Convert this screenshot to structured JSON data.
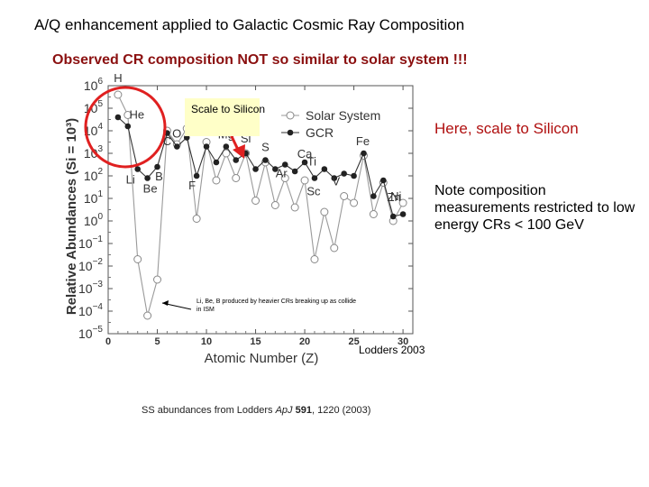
{
  "slide": {
    "title": "A/Q enhancement applied to Galactic Cosmic Ray Composition",
    "subtitle": "Observed CR composition NOT so similar to solar system !!!",
    "note_scale": "Here, scale to Silicon",
    "note_restrict": "Note composition measurements restricted to low energy CRs < 100 GeV",
    "credit": "Lodders 2003",
    "source_prefix": "SS abundances from Lodders ",
    "source_journal": "ApJ",
    "source_volume": "591",
    "source_suffix": ", 1220 (2003)",
    "colors": {
      "subtitle": "#8b1010",
      "note_scale": "#b01010",
      "highlight_circle": "#e02020",
      "arrow": "#e02020",
      "callout_bg": "#ffffc8"
    }
  },
  "chart_data": {
    "type": "line",
    "ylabel": "Relative Abundances (Si = 10³)",
    "xlabel": "Atomic Number (Z)",
    "xlim": [
      0,
      31
    ],
    "ylim": [
      -5,
      6
    ],
    "yscale": "log",
    "x_ticks": [
      "0",
      "5",
      "10",
      "15",
      "20",
      "25",
      "30"
    ],
    "y_ticks": [
      "10⁶",
      "10⁵",
      "10⁴",
      "10³",
      "10²",
      "10¹",
      "10⁰",
      "10⁻¹",
      "10⁻²",
      "10⁻³",
      "10⁻⁴",
      "10⁻⁵"
    ],
    "y_tick_exponents": [
      6,
      5,
      4,
      3,
      2,
      1,
      0,
      -1,
      -2,
      -3,
      -4,
      -5
    ],
    "legend_position": "top-right",
    "x": [
      1,
      2,
      3,
      4,
      5,
      6,
      7,
      8,
      9,
      10,
      11,
      12,
      13,
      14,
      15,
      16,
      17,
      18,
      19,
      20,
      21,
      22,
      23,
      24,
      25,
      26,
      27,
      28,
      29,
      30
    ],
    "series": [
      {
        "name": "Solar System",
        "marker": "open",
        "log10_values": [
          5.6,
          4.7,
          -1.7,
          -4.2,
          -2.6,
          4.0,
          3.4,
          4.1,
          0.1,
          3.5,
          1.8,
          3.0,
          1.9,
          3.0,
          0.9,
          2.6,
          0.7,
          1.9,
          0.6,
          1.8,
          -1.7,
          0.4,
          -1.2,
          1.1,
          0.8,
          2.9,
          0.3,
          1.7,
          0.0,
          0.8
        ]
      },
      {
        "name": "GCR",
        "marker": "filled",
        "log10_values": [
          4.6,
          4.2,
          2.3,
          1.9,
          2.4,
          3.9,
          3.3,
          3.7,
          2.0,
          3.3,
          2.6,
          3.3,
          2.7,
          3.0,
          2.3,
          2.7,
          2.3,
          2.5,
          2.2,
          2.6,
          1.9,
          2.3,
          1.9,
          2.1,
          2.0,
          3.0,
          1.1,
          1.8,
          0.2,
          0.3
        ]
      }
    ],
    "element_labels": [
      {
        "text": "H",
        "z": 1
      },
      {
        "text": "He",
        "z": 2
      },
      {
        "text": "Li",
        "z": 3
      },
      {
        "text": "Be",
        "z": 4
      },
      {
        "text": "B",
        "z": 5
      },
      {
        "text": "C",
        "z": 6
      },
      {
        "text": "O",
        "z": 8
      },
      {
        "text": "F",
        "z": 9
      },
      {
        "text": "Ne",
        "z": 10
      },
      {
        "text": "Mg",
        "z": 12
      },
      {
        "text": "Si",
        "z": 14
      },
      {
        "text": "S",
        "z": 16
      },
      {
        "text": "Ar",
        "z": 18
      },
      {
        "text": "Ca",
        "z": 20
      },
      {
        "text": "Sc",
        "z": 21
      },
      {
        "text": "Ti",
        "z": 22
      },
      {
        "text": "V",
        "z": 23
      },
      {
        "text": "Fe",
        "z": 26
      },
      {
        "text": "Ni",
        "z": 28
      },
      {
        "text": "Zn",
        "z": 30
      }
    ],
    "annotations": {
      "callout": "Scale to Silicon",
      "lbe_note": "Li, Be, B produced by heavier CRs breaking up as collide in ISM"
    }
  }
}
